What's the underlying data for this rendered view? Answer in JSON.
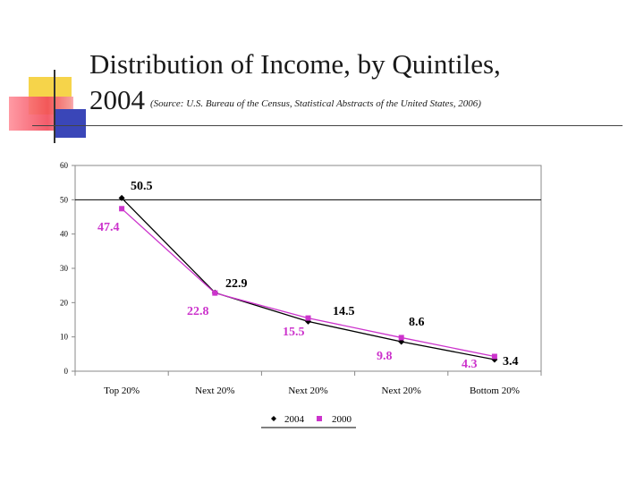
{
  "slide": {
    "title_line1": "Distribution of Income, by Quintiles,",
    "title_year": "2004",
    "source": "(Source: U.S. Bureau of the Census, Statistical Abstracts of the United States, 2006)"
  },
  "colors": {
    "yellow_block": "#f6d44a",
    "red_block": "#f24a5a",
    "blue_block": "#3a46b8",
    "series_2004": "#000000",
    "series_2000": "#cc33cc",
    "label_2000": "#cc33cc"
  },
  "chart_data": {
    "type": "line",
    "title": "",
    "xlabel": "",
    "ylabel": "",
    "categories": [
      "Top 20%",
      "Next 20%",
      "Next 20%",
      "Next 20%",
      "Bottom 20%"
    ],
    "ylim": [
      0,
      60
    ],
    "yticks": [
      "0",
      "10",
      "20",
      "30",
      "40",
      "50",
      "60"
    ],
    "series": [
      {
        "name": "2004",
        "values": [
          50.5,
          22.9,
          14.5,
          8.6,
          3.4
        ],
        "labels": [
          "50.5",
          "22.9",
          "14.5",
          "8.6",
          "3.4"
        ]
      },
      {
        "name": "2000",
        "values": [
          47.4,
          22.8,
          15.5,
          9.8,
          4.3
        ],
        "labels": [
          "47.4",
          "22.8",
          "15.5",
          "9.8",
          "4.3"
        ]
      }
    ],
    "reference_line": 50,
    "legend": "bottom"
  }
}
